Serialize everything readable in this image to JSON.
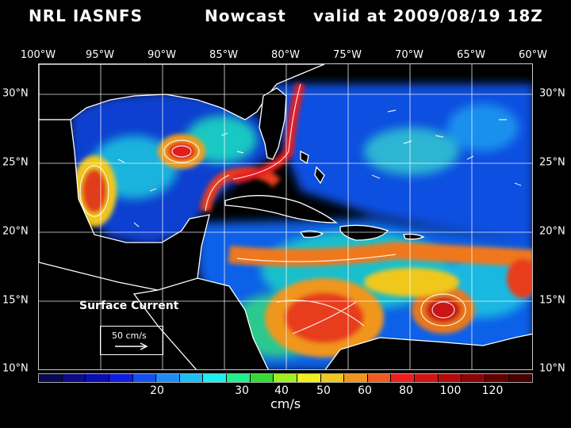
{
  "header": {
    "source": "NRL IASNFS",
    "product": "Nowcast",
    "valid": "valid at 2009/08/19 18Z"
  },
  "longitude_labels": [
    "100°W",
    "95°W",
    "90°W",
    "85°W",
    "80°W",
    "75°W",
    "70°W",
    "65°W",
    "60°W"
  ],
  "latitude_labels": [
    "30°N",
    "25°N",
    "20°N",
    "15°N",
    "10°N"
  ],
  "legend": {
    "title": "Surface Current",
    "scale_label": "50 cm/s"
  },
  "colorbar": {
    "ticks": [
      "20",
      "30",
      "40",
      "50",
      "60",
      "80",
      "100",
      "120"
    ],
    "units": "cm/s",
    "colors": [
      "#0a0a50",
      "#0b0b86",
      "#0c0cb4",
      "#0f1ee0",
      "#1450f0",
      "#1e8cf5",
      "#1ebef5",
      "#1ef0f0",
      "#1ef08c",
      "#32dc32",
      "#a0f01e",
      "#f0f01e",
      "#f0c81e",
      "#f0961e",
      "#f05a1e",
      "#f01e1e",
      "#d21414",
      "#b40a0a",
      "#8c0505",
      "#640000",
      "#460000"
    ]
  },
  "colors": {
    "land": "#000000",
    "coastline": "#ffffff",
    "grid": "#ffffff"
  }
}
